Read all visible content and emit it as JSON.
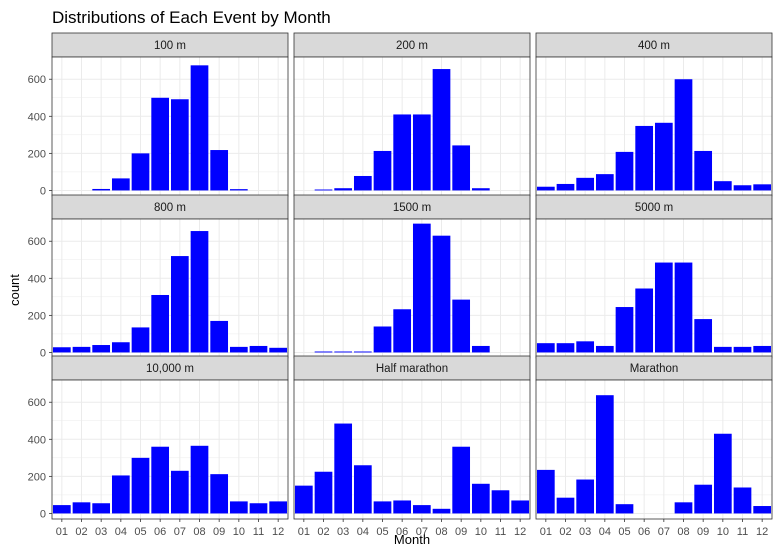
{
  "chart_data": {
    "type": "bar",
    "title": "Distributions of Each Event by Month",
    "xlabel": "Month",
    "ylabel": "count",
    "categories": [
      "01",
      "02",
      "03",
      "04",
      "05",
      "06",
      "07",
      "08",
      "09",
      "10",
      "11",
      "12"
    ],
    "yticks": [
      0,
      200,
      400,
      600
    ],
    "ylim": [
      -30,
      720
    ],
    "grid": true,
    "bar_color": "#0000FF",
    "strip_color": "#D9D9D9",
    "grid_color": "#EBEBEB",
    "panels": [
      {
        "name": "100 m",
        "values": [
          0,
          0,
          8,
          65,
          200,
          500,
          492,
          675,
          218,
          7,
          0,
          0
        ]
      },
      {
        "name": "200 m",
        "values": [
          0,
          5,
          12,
          78,
          213,
          410,
          410,
          655,
          243,
          12,
          0,
          0
        ]
      },
      {
        "name": "400 m",
        "values": [
          20,
          35,
          68,
          88,
          208,
          348,
          365,
          600,
          213,
          50,
          28,
          33
        ]
      },
      {
        "name": "800 m",
        "values": [
          28,
          30,
          40,
          55,
          135,
          310,
          520,
          655,
          170,
          30,
          35,
          25
        ]
      },
      {
        "name": "1500 m",
        "values": [
          0,
          5,
          5,
          5,
          140,
          233,
          695,
          630,
          285,
          35,
          0,
          0
        ]
      },
      {
        "name": "5000 m",
        "values": [
          50,
          50,
          60,
          35,
          245,
          345,
          485,
          485,
          180,
          30,
          30,
          35
        ]
      },
      {
        "name": "10,000 m",
        "values": [
          45,
          60,
          55,
          205,
          300,
          360,
          230,
          365,
          212,
          65,
          55,
          65
        ]
      },
      {
        "name": "Half marathon",
        "values": [
          150,
          225,
          485,
          260,
          65,
          70,
          45,
          25,
          360,
          160,
          125,
          70
        ]
      },
      {
        "name": "Marathon",
        "values": [
          235,
          85,
          183,
          638,
          50,
          0,
          0,
          60,
          155,
          430,
          140,
          40
        ]
      }
    ]
  }
}
